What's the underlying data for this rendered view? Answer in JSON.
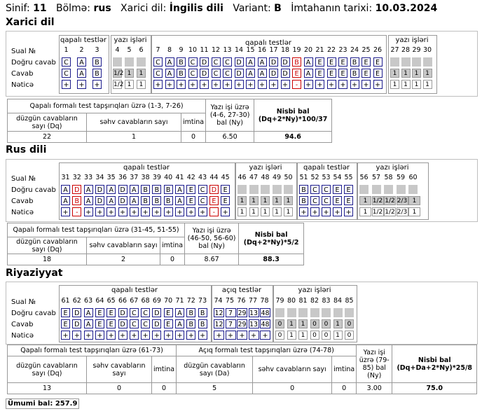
{
  "header": {
    "sinif_label": "Sinif:",
    "sinif": "11",
    "bolme_label": "Bölmə:",
    "bolme": "rus",
    "xarici_label": "Xarici dil:",
    "xarici": "İngilis dili",
    "variant_label": "Variant:",
    "variant": "B",
    "tarix_label": "İmtahanın tarixi:",
    "tarix": "10.03.2024"
  },
  "row_labels": {
    "xarici": [
      "Sual №",
      "Doğru cavab",
      "Cavab",
      "Nəticə"
    ],
    "rus": [
      "Sual №",
      "Doğru cavab",
      "Cavab",
      "Nəticə"
    ],
    "riyaziyyat": [
      "Sual №",
      "Doğru cavab",
      "Cavab",
      "Nəticə"
    ]
  },
  "xarici": {
    "title": "Xarici dil",
    "groups": [
      "qapalı testlər",
      "yazı işləri",
      "qapalı testlər",
      "yazı işləri"
    ],
    "q1": {
      "nums": [
        "1",
        "2",
        "3"
      ],
      "correct": [
        "C",
        "A",
        "B"
      ],
      "answer": [
        "C",
        "A",
        "B"
      ],
      "result": [
        "+",
        "+",
        "+"
      ]
    },
    "w1": {
      "nums": [
        "4",
        "5",
        "6"
      ],
      "answer": [
        "1/2",
        "1",
        "1"
      ],
      "result": [
        "1/2",
        "1",
        "1"
      ]
    },
    "q2": {
      "nums": [
        "7",
        "8",
        "9",
        "10",
        "11",
        "12",
        "13",
        "14",
        "15",
        "16",
        "17",
        "18",
        "19",
        "20",
        "21",
        "22",
        "23",
        "24",
        "25",
        "26"
      ],
      "correct": [
        "C",
        "A",
        "B",
        "C",
        "D",
        "C",
        "C",
        "D",
        "A",
        "A",
        "D",
        "D",
        "B",
        "A",
        "E",
        "E",
        "E",
        "B",
        "E",
        "E"
      ],
      "answer": [
        "C",
        "A",
        "B",
        "C",
        "D",
        "C",
        "C",
        "D",
        "A",
        "A",
        "D",
        "D",
        "E",
        "A",
        "E",
        "E",
        "E",
        "B",
        "E",
        "E"
      ],
      "result": [
        "+",
        "+",
        "+",
        "+",
        "+",
        "+",
        "+",
        "+",
        "+",
        "+",
        "+",
        "+",
        "-",
        "+",
        "+",
        "+",
        "+",
        "+",
        "+",
        "+"
      ]
    },
    "w2": {
      "nums": [
        "27",
        "28",
        "29",
        "30"
      ],
      "answer": [
        "1",
        "1",
        "1",
        "1"
      ],
      "result": [
        "1",
        "1",
        "1",
        "1"
      ]
    },
    "summary": {
      "title": "Qapalı formalı test tapşırıqları üzrə (1-3, 7-26)",
      "dq_label": "düzgün cavabların sayı (Dq)",
      "wrong_label": "səhv cavabların sayı",
      "imtina_label": "imtina",
      "ny_label": "Yazı işi üzrə (4-6, 27-30) bal (Ny)",
      "nisbi_label": "Nisbi bal (Dq+2*Ny)*100/37",
      "dq": "22",
      "wrong": "1",
      "imtina": "0",
      "ny": "6.50",
      "nisbi": "94.6"
    }
  },
  "rus": {
    "title": "Rus dili",
    "groups": [
      "qapalı testlər",
      "yazı işləri",
      "qapalı testlər",
      "yazı işləri"
    ],
    "q1": {
      "nums": [
        "31",
        "32",
        "33",
        "34",
        "35",
        "36",
        "37",
        "38",
        "39",
        "40",
        "41",
        "42",
        "43",
        "44",
        "45"
      ],
      "correct": [
        "A",
        "D",
        "A",
        "D",
        "A",
        "D",
        "A",
        "B",
        "B",
        "B",
        "A",
        "E",
        "C",
        "D",
        "E"
      ],
      "answer": [
        "A",
        "B",
        "A",
        "D",
        "A",
        "D",
        "A",
        "B",
        "B",
        "B",
        "A",
        "E",
        "C",
        "E",
        "E"
      ],
      "result": [
        "+",
        "-",
        "+",
        "+",
        "+",
        "+",
        "+",
        "+",
        "+",
        "+",
        "+",
        "+",
        "+",
        "-",
        "+"
      ]
    },
    "w1": {
      "nums": [
        "46",
        "47",
        "48",
        "49",
        "50"
      ],
      "answer": [
        "1",
        "1",
        "1",
        "1",
        "1"
      ],
      "result": [
        "1",
        "1",
        "1",
        "1",
        "1"
      ]
    },
    "q2": {
      "nums": [
        "51",
        "52",
        "53",
        "54",
        "55"
      ],
      "correct": [
        "B",
        "C",
        "C",
        "E",
        "E"
      ],
      "answer": [
        "B",
        "C",
        "C",
        "E",
        "E"
      ],
      "result": [
        "+",
        "+",
        "+",
        "+",
        "+"
      ]
    },
    "w2": {
      "nums": [
        "56",
        "57",
        "58",
        "59",
        "60"
      ],
      "answer": [
        "1",
        "1/2",
        "1/2",
        "2/3",
        "1"
      ],
      "result": [
        "1",
        "1/2",
        "1/2",
        "2/3",
        "1"
      ]
    },
    "summary": {
      "title": "Qapalı formalı test tapşırıqları üzrə (31-45, 51-55)",
      "dq_label": "düzgün cavabların sayı (Dq)",
      "wrong_label": "səhv cavabların sayı",
      "imtina_label": "imtina",
      "ny_label": "Yazı işi üzrə (46-50, 56-60) bal (Ny)",
      "nisbi_label": "Nisbi bal (Dq+2*Ny)*5/2",
      "dq": "18",
      "wrong": "2",
      "imtina": "0",
      "ny": "8.67",
      "nisbi": "88.3"
    }
  },
  "riyaziyyat": {
    "title": "Riyaziyyat",
    "groups": [
      "qapalı testlər",
      "açıq testlər",
      "yazı işləri"
    ],
    "q1": {
      "nums": [
        "61",
        "62",
        "63",
        "64",
        "65",
        "66",
        "67",
        "68",
        "69",
        "70",
        "71",
        "72",
        "73"
      ],
      "correct": [
        "E",
        "D",
        "A",
        "E",
        "E",
        "D",
        "C",
        "C",
        "D",
        "E",
        "A",
        "B",
        "B"
      ],
      "answer": [
        "E",
        "D",
        "A",
        "E",
        "E",
        "D",
        "C",
        "C",
        "D",
        "E",
        "A",
        "B",
        "B"
      ],
      "result": [
        "+",
        "+",
        "+",
        "+",
        "+",
        "+",
        "+",
        "+",
        "+",
        "+",
        "+",
        "+",
        "+"
      ]
    },
    "open": {
      "nums": [
        "74",
        "75",
        "76",
        "77",
        "78"
      ],
      "correct": [
        "12",
        "7",
        "29",
        "13",
        "48"
      ],
      "answer": [
        "12",
        "7",
        "29",
        "13",
        "48"
      ],
      "result": [
        "+",
        "+",
        "+",
        "+",
        "+"
      ]
    },
    "w": {
      "nums": [
        "79",
        "80",
        "81",
        "82",
        "83",
        "84",
        "85"
      ],
      "answer": [
        "0",
        "1",
        "1",
        "0",
        "0",
        "1",
        "0"
      ],
      "result": [
        "0",
        "1",
        "1",
        "0",
        "0",
        "1",
        "0"
      ]
    },
    "summary": {
      "title1": "Qapalı formalı test tapşırıqları üzrə (61-73)",
      "title2": "Açıq formalı test tapşırıqları üzrə (74-78)",
      "dq_label": "düzgün cavabların sayı (Dq)",
      "wrong_label": "səhv cavabların sayı",
      "imtina_label": "imtina",
      "da_label": "düzgün cavabların sayı (Da)",
      "ny_label": "Yazı işi üzrə (79-85) bal (Ny)",
      "nisbi_label": "Nisbi bal (Dq+Da+2*Ny)*25/8",
      "dq": "13",
      "wrong1": "0",
      "imtina1": "0",
      "da": "5",
      "wrong2": "0",
      "imtina2": "0",
      "ny": "3.00",
      "nisbi": "75.0"
    }
  },
  "total": {
    "label": "Ümumi bal:",
    "value": "257.9"
  }
}
